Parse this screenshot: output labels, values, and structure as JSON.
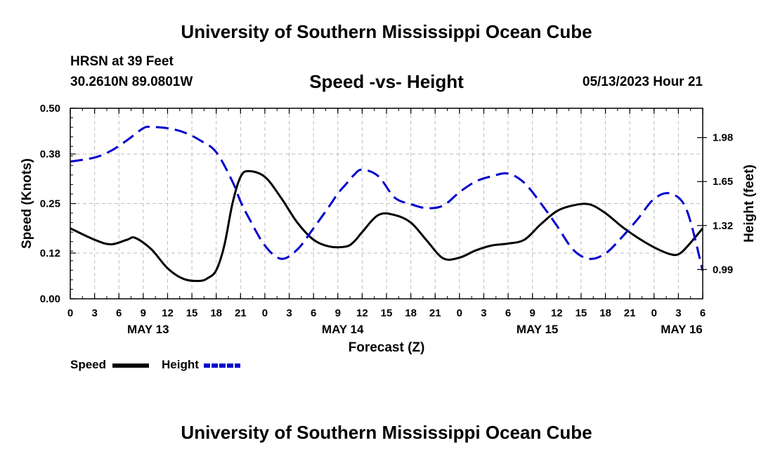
{
  "page": {
    "title": "University of Southern Mississippi Ocean Cube",
    "footer_title": "University of Southern Mississippi Ocean Cube",
    "station": "HRSN at 39 Feet",
    "coords": "30.2610N  89.0801W",
    "chart_title": "Speed -vs- Height",
    "datetime": "05/13/2023 Hour 21"
  },
  "legend": {
    "speed_label": "Speed",
    "height_label": "Height"
  },
  "colors": {
    "speed": "#000000",
    "height": "#0000cc",
    "grid": "#bdbdbd"
  },
  "chart_data": {
    "type": "line",
    "title": "Speed -vs- Height",
    "xlabel": "Forecast (Z)",
    "ylabel": "Speed (Knots)",
    "y2label": "Height (feet)",
    "x_range": [
      0,
      78
    ],
    "ylim": [
      0,
      0.5
    ],
    "y2lim": [
      0.77,
      2.2
    ],
    "x_ticks": [
      0,
      3,
      6,
      9,
      12,
      15,
      18,
      21,
      24,
      27,
      30,
      33,
      36,
      39,
      42,
      45,
      48,
      51,
      54,
      57,
      60,
      63,
      66,
      69,
      72,
      75,
      78
    ],
    "x_tick_labels": [
      "0",
      "3",
      "6",
      "9",
      "12",
      "15",
      "18",
      "21",
      "0",
      "3",
      "6",
      "9",
      "12",
      "15",
      "18",
      "21",
      "0",
      "3",
      "6",
      "9",
      "12",
      "15",
      "18",
      "21",
      "0",
      "3",
      "6"
    ],
    "day_labels": [
      {
        "x": 9.6,
        "text": "MAY 13"
      },
      {
        "x": 33.6,
        "text": "MAY 14"
      },
      {
        "x": 57.6,
        "text": "MAY 15"
      },
      {
        "x": 75.4,
        "text": "MAY 16"
      }
    ],
    "y_ticks": [
      0.0,
      0.12,
      0.25,
      0.38,
      0.5
    ],
    "y_tick_labels": [
      "0.00",
      "0.12",
      "0.25",
      "0.38",
      "0.50"
    ],
    "y2_ticks": [
      0.99,
      1.32,
      1.65,
      1.98
    ],
    "y2_tick_labels": [
      "0.99",
      "1.32",
      "1.65",
      "1.98"
    ],
    "grid": true,
    "series": [
      {
        "name": "Speed",
        "axis": "left",
        "style": "solid",
        "x": [
          0,
          3,
          5,
          7,
          8,
          10,
          12,
          14,
          16,
          17,
          18,
          19,
          20,
          21,
          22,
          24,
          26,
          28,
          30,
          32,
          34,
          35,
          36,
          38,
          40,
          42,
          44,
          46,
          48,
          50,
          52,
          54,
          56,
          58,
          60,
          62,
          64,
          66,
          68,
          70,
          72,
          74,
          75,
          76,
          78
        ],
        "values": [
          0.185,
          0.155,
          0.143,
          0.155,
          0.16,
          0.13,
          0.08,
          0.052,
          0.047,
          0.055,
          0.075,
          0.14,
          0.25,
          0.32,
          0.335,
          0.32,
          0.265,
          0.2,
          0.155,
          0.137,
          0.137,
          0.15,
          0.175,
          0.22,
          0.22,
          0.2,
          0.152,
          0.106,
          0.108,
          0.127,
          0.14,
          0.145,
          0.155,
          0.195,
          0.23,
          0.245,
          0.248,
          0.225,
          0.19,
          0.16,
          0.135,
          0.117,
          0.117,
          0.135,
          0.185
        ]
      },
      {
        "name": "Height",
        "axis": "right",
        "style": "dashed",
        "x": [
          0,
          3,
          5,
          7,
          9,
          10,
          12,
          14,
          16,
          18,
          20,
          21,
          22,
          24,
          26,
          28,
          30,
          32,
          33,
          34,
          35,
          36,
          38,
          40,
          42,
          44,
          46,
          48,
          50,
          52,
          54,
          56,
          58,
          60,
          62,
          64,
          66,
          68,
          70,
          72,
          74,
          76,
          78
        ],
        "values": [
          1.8,
          1.83,
          1.88,
          1.96,
          2.05,
          2.06,
          2.05,
          2.02,
          1.96,
          1.87,
          1.65,
          1.5,
          1.38,
          1.17,
          1.07,
          1.14,
          1.3,
          1.47,
          1.56,
          1.63,
          1.7,
          1.74,
          1.69,
          1.53,
          1.48,
          1.45,
          1.47,
          1.57,
          1.65,
          1.69,
          1.71,
          1.64,
          1.49,
          1.32,
          1.14,
          1.07,
          1.11,
          1.23,
          1.37,
          1.52,
          1.56,
          1.44,
          0.98
        ]
      }
    ]
  }
}
